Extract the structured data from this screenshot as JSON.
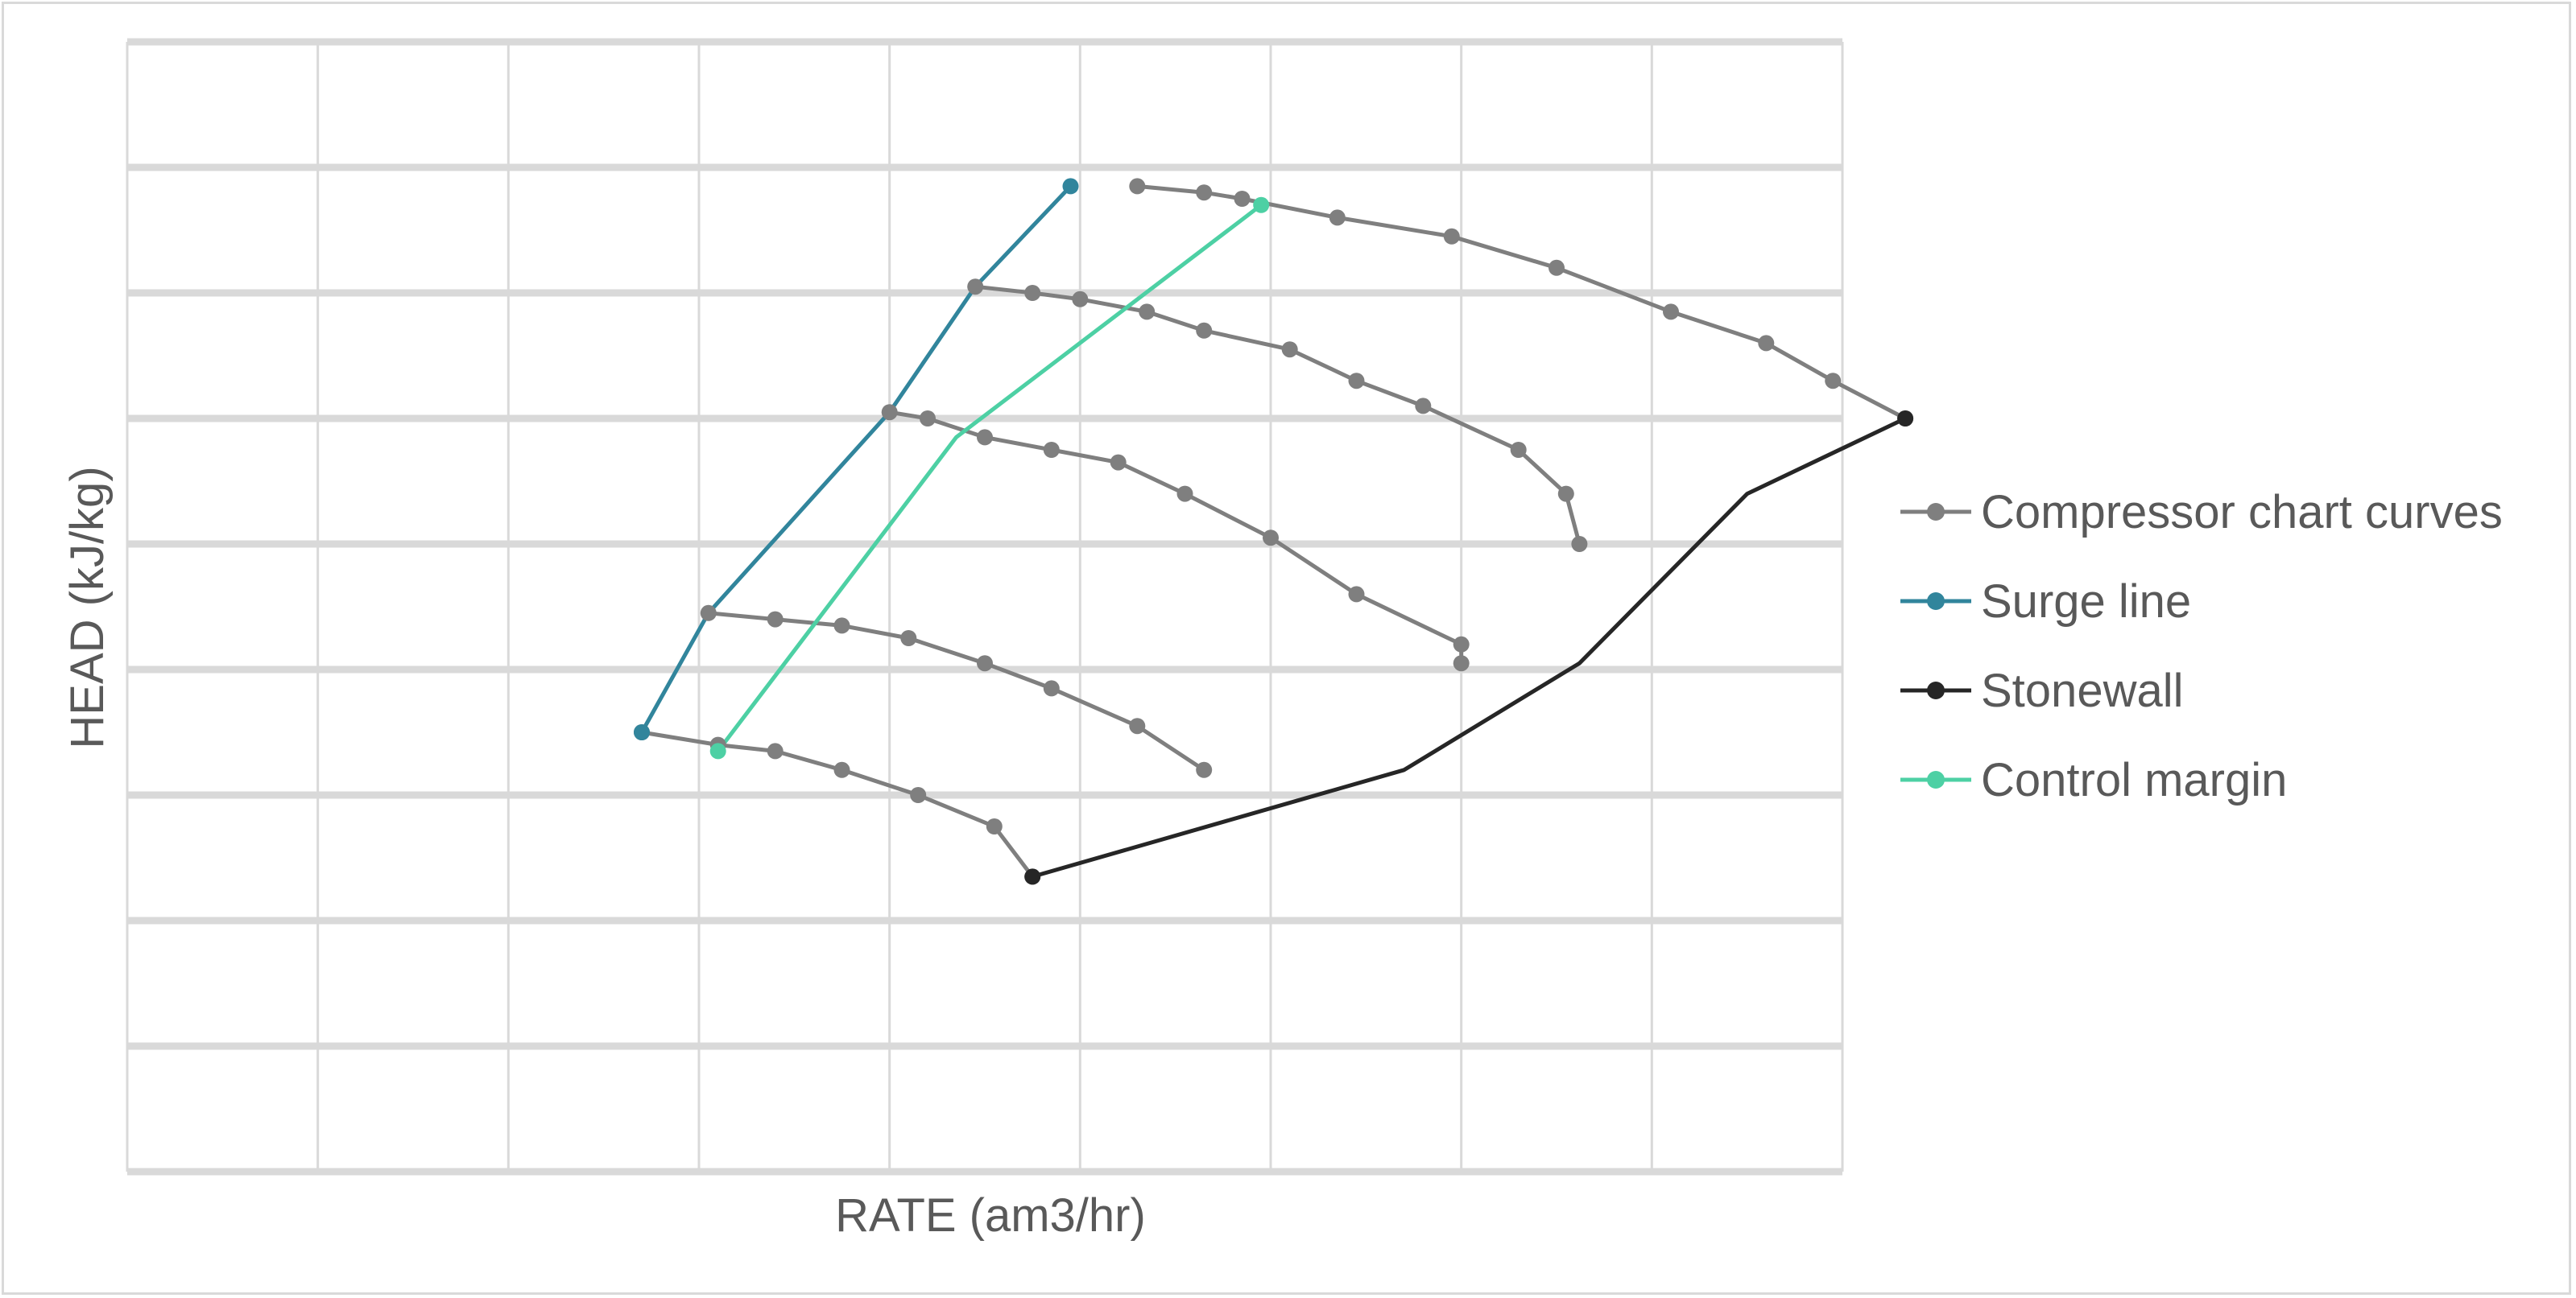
{
  "chart_data": {
    "type": "scatter",
    "title": "",
    "xlabel": "RATE (am3/hr)",
    "ylabel": "HEAD (kJ/kg)",
    "xlim": [
      0,
      9
    ],
    "ylim": [
      0,
      9
    ],
    "x_gridlines": [
      0,
      1,
      2,
      3,
      4,
      5,
      6,
      7,
      8,
      9
    ],
    "y_gridlines": [
      0,
      1,
      2,
      3,
      4,
      5,
      6,
      7,
      8,
      9
    ],
    "grid": true,
    "tick_labels_shown": false,
    "legend_position": "right",
    "series": [
      {
        "name": "Compressor chart curves",
        "color": "#7f7f7f",
        "curves": [
          [
            [
              5.3,
              7.85
            ],
            [
              5.65,
              7.8
            ],
            [
              5.85,
              7.75
            ],
            [
              6.35,
              7.6
            ],
            [
              6.95,
              7.45
            ],
            [
              7.5,
              7.2
            ],
            [
              8.1,
              6.85
            ],
            [
              8.6,
              6.6
            ],
            [
              8.95,
              6.3
            ],
            [
              9.33,
              6.0
            ]
          ],
          [
            [
              4.45,
              7.05
            ],
            [
              4.75,
              7.0
            ],
            [
              5.0,
              6.95
            ],
            [
              5.35,
              6.85
            ],
            [
              5.65,
              6.7
            ],
            [
              6.1,
              6.55
            ],
            [
              6.45,
              6.3
            ],
            [
              6.8,
              6.1
            ],
            [
              7.3,
              5.75
            ],
            [
              7.55,
              5.4
            ],
            [
              7.62,
              5.0
            ]
          ],
          [
            [
              4.0,
              6.05
            ],
            [
              4.2,
              6.0
            ],
            [
              4.5,
              5.85
            ],
            [
              4.85,
              5.75
            ],
            [
              5.2,
              5.65
            ],
            [
              5.55,
              5.4
            ],
            [
              6.0,
              5.05
            ],
            [
              6.45,
              4.6
            ],
            [
              7.0,
              4.2
            ],
            [
              7.0,
              4.05
            ]
          ],
          [
            [
              3.05,
              4.45
            ],
            [
              3.4,
              4.4
            ],
            [
              3.75,
              4.35
            ],
            [
              4.1,
              4.25
            ],
            [
              4.5,
              4.05
            ],
            [
              4.85,
              3.85
            ],
            [
              5.3,
              3.55
            ],
            [
              5.65,
              3.2
            ]
          ],
          [
            [
              2.7,
              3.5
            ],
            [
              3.1,
              3.4
            ],
            [
              3.4,
              3.35
            ],
            [
              3.75,
              3.2
            ],
            [
              4.15,
              3.0
            ],
            [
              4.55,
              2.75
            ],
            [
              4.75,
              2.35
            ]
          ]
        ]
      },
      {
        "name": "Surge line",
        "color": "#31859c",
        "points": [
          [
            2.7,
            3.5
          ],
          [
            3.05,
            4.45
          ],
          [
            4.0,
            6.05
          ],
          [
            4.45,
            7.05
          ],
          [
            4.95,
            7.85
          ]
        ]
      },
      {
        "name": "Stonewall",
        "color": "#262626",
        "points": [
          [
            4.75,
            2.35
          ],
          [
            6.7,
            3.2
          ],
          [
            7.62,
            4.05
          ],
          [
            8.5,
            5.4
          ],
          [
            9.33,
            6.0
          ]
        ]
      },
      {
        "name": "Control margin",
        "color": "#4dd0a4",
        "points": [
          [
            3.1,
            3.35
          ],
          [
            4.35,
            5.85
          ],
          [
            5.95,
            7.7
          ]
        ]
      }
    ]
  }
}
